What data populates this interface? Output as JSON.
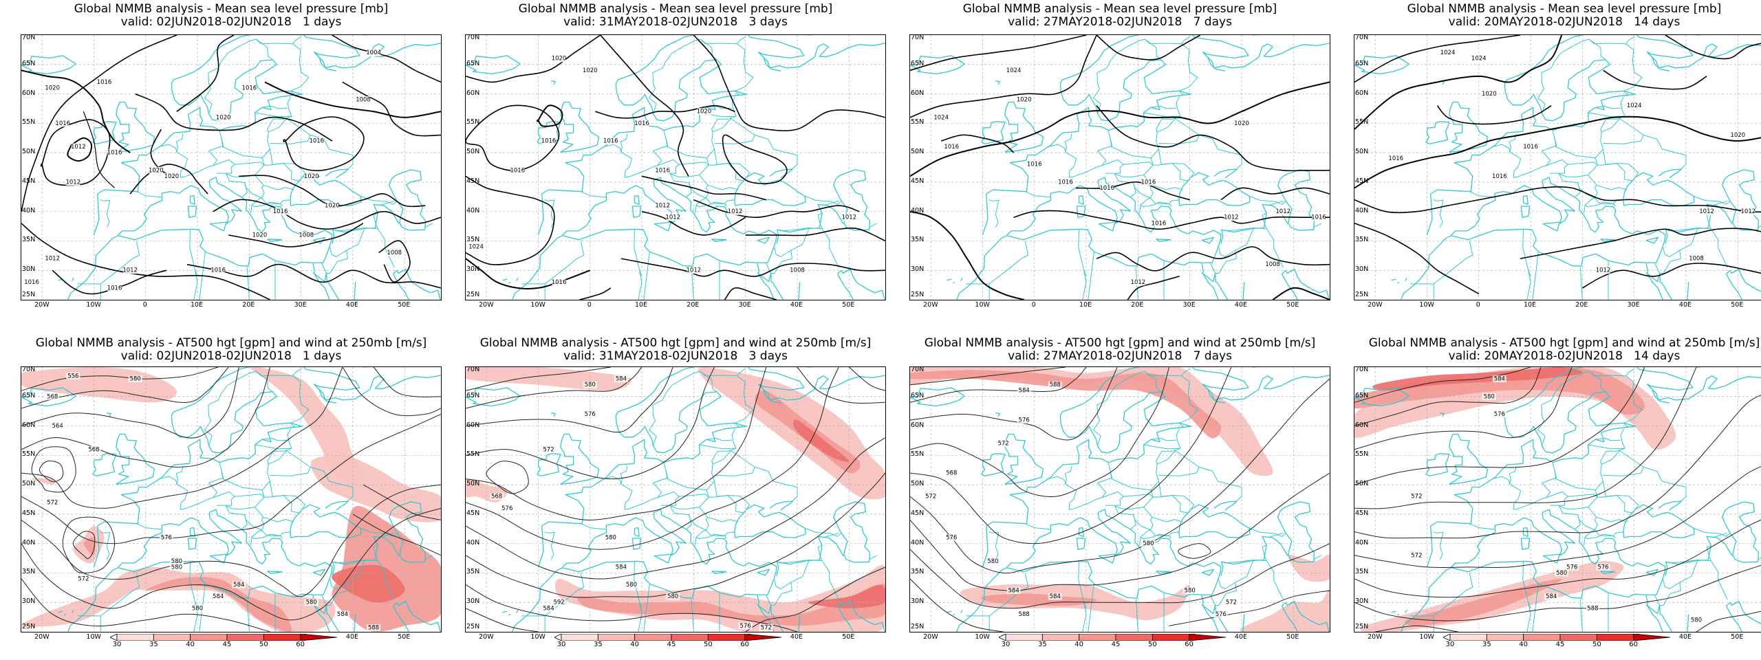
{
  "top_row": [
    {
      "title": "Global NMMB analysis - Mean sea level pressure [mb]",
      "valid": "valid: 02JUN2018-02JUN2018   1 days"
    },
    {
      "title": "Global NMMB analysis - Mean sea level pressure [mb]",
      "valid": "valid: 31MAY2018-02JUN2018   3 days"
    },
    {
      "title": "Global NMMB analysis - Mean sea level pressure [mb]",
      "valid": "valid: 27MAY2018-02JUN2018   7 days"
    },
    {
      "title": "Global NMMB analysis - Mean sea level pressure [mb]",
      "valid": "valid: 20MAY2018-02JUN2018   14 days"
    }
  ],
  "bottom_row": [
    {
      "title": "Global NMMB analysis - AT500 hgt [gpm] and wind at 250mb [m/s]",
      "valid": "valid: 02JUN2018-02JUN2018   1 days"
    },
    {
      "title": "Global NMMB analysis - AT500 hgt [gpm] and wind at 250mb [m/s]",
      "valid": "valid: 31MAY2018-02JUN2018   3 days"
    },
    {
      "title": "Global NMMB analysis - AT500 hgt [gpm] and wind at 250mb [m/s]",
      "valid": "valid: 27MAY2018-02JUN2018   7 days"
    },
    {
      "title": "Global NMMB analysis - AT500 hgt [gpm] and wind at 250mb [m/s]",
      "valid": "valid: 20MAY2018-02JUN2018   14 days"
    }
  ],
  "lat_labels": [
    "70N",
    "65N",
    "60N",
    "55N",
    "50N",
    "45N",
    "40N",
    "35N",
    "30N",
    "25N"
  ],
  "lon_labels": [
    "20W",
    "10W",
    "0",
    "10E",
    "20E",
    "30E",
    "40E",
    "50E"
  ],
  "slp_labels": [
    [
      "1016",
      "1012",
      "1020",
      "1016",
      "1016",
      "1012",
      "1020",
      "1020",
      "1016",
      "1004",
      "1008",
      "1016",
      "1020",
      "1020",
      "1016",
      "1020",
      "1012",
      "1016",
      "1008",
      "1016",
      "1012",
      "1016",
      "1008",
      "1020"
    ],
    [
      "1020",
      "1020",
      "1016",
      "1016",
      "1020",
      "1016",
      "1016",
      "1016",
      "1012",
      "1012",
      "1012",
      "1008",
      "1024",
      "1016",
      "1012",
      "1012"
    ],
    [
      "1024",
      "1024",
      "1020",
      "1016",
      "1016",
      "1016",
      "1016",
      "1016",
      "1012",
      "1012",
      "1016",
      "1012",
      "1008",
      "1016",
      "1020"
    ],
    [
      "1024",
      "1024",
      "1020",
      "1016",
      "1016",
      "1016",
      "1012",
      "1012",
      "1008",
      "1012",
      "1020",
      "1024"
    ]
  ],
  "z500_labels": [
    [
      "556",
      "580",
      "568",
      "564",
      "568",
      "572",
      "576",
      "580",
      "584",
      "580",
      "580",
      "584",
      "572",
      "580",
      "584",
      "588"
    ],
    [
      "584",
      "580",
      "576",
      "572",
      "568",
      "576",
      "580",
      "584",
      "580",
      "592",
      "584",
      "580",
      "576",
      "572"
    ],
    [
      "588",
      "584",
      "576",
      "572",
      "568",
      "572",
      "576",
      "580",
      "584",
      "588",
      "584",
      "580",
      "576",
      "572",
      "580"
    ],
    [
      "584",
      "580",
      "576",
      "572",
      "576",
      "580",
      "584",
      "588",
      "572",
      "576",
      "580"
    ]
  ],
  "colorbar": {
    "ticks": [
      "30",
      "35",
      "40",
      "45",
      "50",
      "60"
    ],
    "colors": [
      "#ffffff",
      "#fde0de",
      "#fbbcb8",
      "#f79591",
      "#f26a66",
      "#e8302c",
      "#c80000"
    ]
  },
  "colors": {
    "coast": "#2ec9d0",
    "contour": "#000000",
    "grid": "#b0b0b0"
  }
}
